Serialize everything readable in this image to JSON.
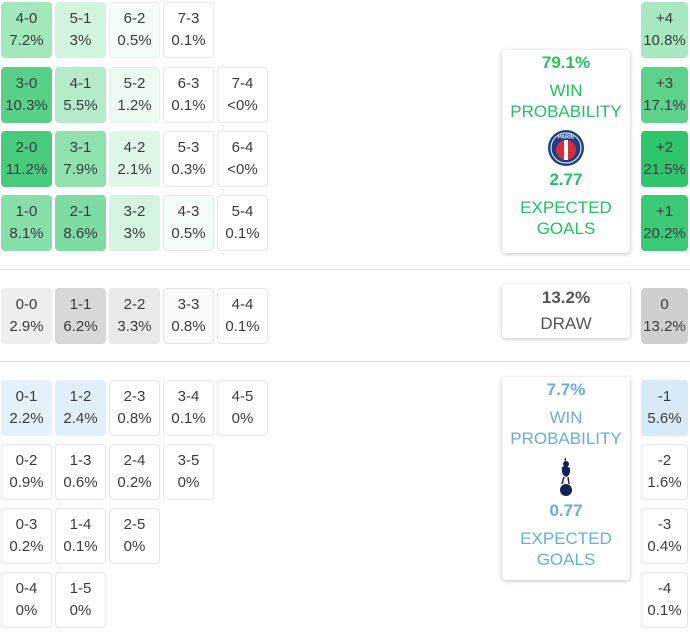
{
  "home": {
    "win_pct": "79.1%",
    "win_label_1": "WIN",
    "win_label_2": "PROBABILITY",
    "xg": "2.77",
    "xg_label_1": "EXPECTED",
    "xg_label_2": "GOALS",
    "crest_text": "PARIS",
    "accent": "#22c35e"
  },
  "draw": {
    "pct": "13.2%",
    "label": "DRAW"
  },
  "away": {
    "win_pct": "7.7%",
    "win_label_1": "WIN",
    "win_label_2": "PROBABILITY",
    "xg": "0.77",
    "xg_label_1": "EXPECTED",
    "xg_label_2": "GOALS",
    "accent": "#6aaed6"
  },
  "home_scores": [
    [
      "4-0",
      "7.2%"
    ],
    [
      "5-1",
      "3%"
    ],
    [
      "6-2",
      "0.5%"
    ],
    [
      "7-3",
      "0.1%"
    ],
    [
      "3-0",
      "10.3%"
    ],
    [
      "4-1",
      "5.5%"
    ],
    [
      "5-2",
      "1.2%"
    ],
    [
      "6-3",
      "0.1%"
    ],
    [
      "7-4",
      "<0%"
    ],
    [
      "2-0",
      "11.2%"
    ],
    [
      "3-1",
      "7.9%"
    ],
    [
      "4-2",
      "2.1%"
    ],
    [
      "5-3",
      "0.3%"
    ],
    [
      "6-4",
      "<0%"
    ],
    [
      "1-0",
      "8.1%"
    ],
    [
      "2-1",
      "8.6%"
    ],
    [
      "3-2",
      "3%"
    ],
    [
      "4-3",
      "0.5%"
    ],
    [
      "5-4",
      "0.1%"
    ]
  ],
  "draw_scores": [
    [
      "0-0",
      "2.9%"
    ],
    [
      "1-1",
      "6.2%"
    ],
    [
      "2-2",
      "3.3%"
    ],
    [
      "3-3",
      "0.8%"
    ],
    [
      "4-4",
      "0.1%"
    ]
  ],
  "away_scores": [
    [
      "0-1",
      "2.2%"
    ],
    [
      "1-2",
      "2.4%"
    ],
    [
      "2-3",
      "0.8%"
    ],
    [
      "3-4",
      "0.1%"
    ],
    [
      "4-5",
      "0%"
    ],
    [
      "0-2",
      "0.9%"
    ],
    [
      "1-3",
      "0.6%"
    ],
    [
      "2-4",
      "0.2%"
    ],
    [
      "3-5",
      "0%"
    ],
    [
      "0-3",
      "0.2%"
    ],
    [
      "1-4",
      "0.1%"
    ],
    [
      "2-5",
      "0%"
    ],
    [
      "0-4",
      "0%"
    ],
    [
      "1-5",
      "0%"
    ]
  ],
  "margins_home": [
    [
      "+4",
      "10.8%"
    ],
    [
      "+3",
      "17.1%"
    ],
    [
      "+2",
      "21.5%"
    ],
    [
      "+1",
      "20.2%"
    ]
  ],
  "margin_draw": [
    "0",
    "13.2%"
  ],
  "margins_away": [
    [
      "-1",
      "5.6%"
    ],
    [
      "-2",
      "1.6%"
    ],
    [
      "-3",
      "0.4%"
    ],
    [
      "-4",
      "0.1%"
    ]
  ]
}
